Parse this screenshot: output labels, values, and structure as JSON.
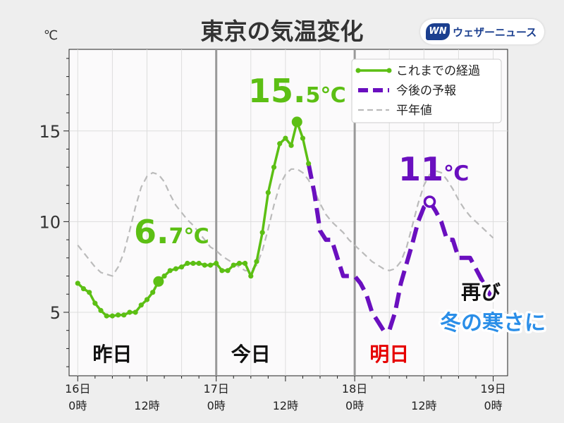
{
  "title": "東京の気温変化",
  "unit_label": "℃",
  "brand": {
    "mark": "WN",
    "name": "ウェザーニュース",
    "color": "#1b3f8f"
  },
  "legend": {
    "observed": "これまでの経過",
    "forecast": "今後の予報",
    "normal": "平年値"
  },
  "colors": {
    "observed": "#5cbf14",
    "forecast": "#6a0fbf",
    "normal": "#bbbbbb",
    "today_accent": "#e60000",
    "callout_blue": "#2a8ee8"
  },
  "day_labels": [
    {
      "text": "昨日",
      "x": 6,
      "color": "#111111"
    },
    {
      "text": "今日",
      "x": 30,
      "color": "#111111"
    },
    {
      "text": "明日",
      "x": 54,
      "color": "#e60000"
    }
  ],
  "annotations": [
    {
      "big": "6.",
      "small": "7℃",
      "x": 9,
      "y": 6.7,
      "color": "#5cbf14"
    },
    {
      "big": "15.",
      "small": "5℃",
      "x": 39,
      "y": 15.5,
      "color": "#5cbf14"
    },
    {
      "big": "11",
      "small": "℃",
      "x": 62,
      "y": 11.1,
      "color": "#6a0fbf"
    }
  ],
  "callout": {
    "line1": "再び",
    "line2": "冬の寒さに"
  },
  "chart_data": {
    "type": "line",
    "title": "東京の気温変化",
    "ylabel": "℃",
    "xlim": [
      -1.5,
      74.5
    ],
    "ylim": [
      1.5,
      19.5
    ],
    "yticks": [
      5,
      10,
      15
    ],
    "xticks": [
      {
        "x": 0,
        "top": "16日",
        "bottom": "0時"
      },
      {
        "x": 12,
        "top": "",
        "bottom": "12時"
      },
      {
        "x": 24,
        "top": "17日",
        "bottom": "0時"
      },
      {
        "x": 36,
        "top": "",
        "bottom": "12時"
      },
      {
        "x": 48,
        "top": "18日",
        "bottom": "0時"
      },
      {
        "x": 60,
        "top": "",
        "bottom": "12時"
      },
      {
        "x": 72,
        "top": "19日",
        "bottom": "0時"
      }
    ],
    "day_separators": [
      24,
      48
    ],
    "grid": true,
    "legend_position": "top-right",
    "series": [
      {
        "key": "observed",
        "name": "これまでの経過",
        "style": "solid-markers",
        "points": [
          [
            0,
            6.6
          ],
          [
            1,
            6.3
          ],
          [
            2,
            6.1
          ],
          [
            3,
            5.5
          ],
          [
            4,
            5.1
          ],
          [
            5,
            4.8
          ],
          [
            6,
            4.8
          ],
          [
            7,
            4.85
          ],
          [
            8,
            4.85
          ],
          [
            9,
            5.0
          ],
          [
            10,
            5.0
          ],
          [
            11,
            5.4
          ],
          [
            12,
            5.7
          ],
          [
            13,
            6.1
          ],
          [
            14,
            6.7
          ],
          [
            15,
            7.0
          ],
          [
            16,
            7.3
          ],
          [
            17,
            7.4
          ],
          [
            18,
            7.5
          ],
          [
            19,
            7.7
          ],
          [
            20,
            7.7
          ],
          [
            21,
            7.7
          ],
          [
            22,
            7.6
          ],
          [
            23,
            7.6
          ],
          [
            24,
            7.7
          ],
          [
            25,
            7.3
          ],
          [
            26,
            7.3
          ],
          [
            27,
            7.6
          ],
          [
            28,
            7.7
          ],
          [
            29,
            7.7
          ],
          [
            30,
            7.0
          ],
          [
            31,
            7.8
          ],
          [
            32,
            9.4
          ],
          [
            33,
            11.6
          ],
          [
            34,
            13.0
          ],
          [
            35,
            14.3
          ],
          [
            36,
            14.6
          ],
          [
            37,
            14.2
          ],
          [
            38,
            15.5
          ],
          [
            39,
            14.6
          ],
          [
            40,
            13.2
          ]
        ]
      },
      {
        "key": "forecast",
        "name": "今後の予報",
        "style": "dashed",
        "points": [
          [
            40,
            13.2
          ],
          [
            41,
            11.6
          ],
          [
            42,
            9.5
          ],
          [
            43,
            9.0
          ],
          [
            44,
            9.0
          ],
          [
            45,
            8.0
          ],
          [
            46,
            7.0
          ],
          [
            47,
            7.0
          ],
          [
            48,
            7.0
          ],
          [
            49,
            6.6
          ],
          [
            50,
            6.0
          ],
          [
            51,
            5.0
          ],
          [
            52,
            4.5
          ],
          [
            53,
            4.0
          ],
          [
            54,
            4.0
          ],
          [
            55,
            5.0
          ],
          [
            56,
            6.6
          ],
          [
            57,
            7.7
          ],
          [
            58,
            8.8
          ],
          [
            59,
            10.0
          ],
          [
            60,
            10.8
          ],
          [
            61,
            11.1
          ],
          [
            62,
            10.6
          ],
          [
            63,
            10.0
          ],
          [
            64,
            9.0
          ],
          [
            65,
            9.0
          ],
          [
            66,
            8.0
          ],
          [
            67,
            8.0
          ],
          [
            68,
            8.0
          ],
          [
            69,
            7.4
          ],
          [
            70,
            6.8
          ],
          [
            71,
            6.2
          ],
          [
            72,
            5.7
          ]
        ]
      },
      {
        "key": "normal",
        "name": "平年値",
        "style": "dashed-thin",
        "points": [
          [
            0,
            8.7
          ],
          [
            1,
            8.3
          ],
          [
            2,
            7.9
          ],
          [
            3,
            7.5
          ],
          [
            4,
            7.2
          ],
          [
            5,
            7.1
          ],
          [
            6,
            7.0
          ],
          [
            7,
            7.5
          ],
          [
            8,
            8.3
          ],
          [
            9,
            9.5
          ],
          [
            10,
            10.8
          ],
          [
            11,
            11.9
          ],
          [
            12,
            12.5
          ],
          [
            13,
            12.7
          ],
          [
            14,
            12.6
          ],
          [
            15,
            12.2
          ],
          [
            16,
            11.5
          ],
          [
            17,
            10.9
          ],
          [
            18,
            10.5
          ],
          [
            19,
            10.1
          ],
          [
            20,
            9.8
          ],
          [
            21,
            9.4
          ],
          [
            22,
            9.0
          ],
          [
            23,
            8.6
          ],
          [
            24,
            8.4
          ],
          [
            25,
            8.1
          ],
          [
            26,
            7.9
          ],
          [
            27,
            7.7
          ],
          [
            28,
            7.5
          ],
          [
            29,
            7.3
          ],
          [
            30,
            7.3
          ],
          [
            31,
            7.6
          ],
          [
            32,
            8.4
          ],
          [
            33,
            9.6
          ],
          [
            34,
            10.9
          ],
          [
            35,
            12.0
          ],
          [
            36,
            12.6
          ],
          [
            37,
            12.9
          ],
          [
            38,
            12.9
          ],
          [
            39,
            12.7
          ],
          [
            40,
            12.3
          ],
          [
            41,
            11.7
          ],
          [
            42,
            11.0
          ],
          [
            43,
            10.4
          ],
          [
            44,
            10.0
          ],
          [
            45,
            9.7
          ],
          [
            46,
            9.4
          ],
          [
            47,
            9.0
          ],
          [
            48,
            8.7
          ],
          [
            49,
            8.4
          ],
          [
            50,
            8.1
          ],
          [
            51,
            7.8
          ],
          [
            52,
            7.6
          ],
          [
            53,
            7.4
          ],
          [
            54,
            7.3
          ],
          [
            55,
            7.4
          ],
          [
            56,
            7.8
          ],
          [
            57,
            8.6
          ],
          [
            58,
            9.8
          ],
          [
            59,
            11.0
          ],
          [
            60,
            12.0
          ],
          [
            61,
            12.6
          ],
          [
            62,
            12.8
          ],
          [
            63,
            12.7
          ],
          [
            64,
            12.3
          ],
          [
            65,
            11.8
          ],
          [
            66,
            11.2
          ],
          [
            67,
            10.7
          ],
          [
            68,
            10.3
          ],
          [
            69,
            10.0
          ],
          [
            70,
            9.7
          ],
          [
            71,
            9.4
          ],
          [
            72,
            9.1
          ]
        ]
      }
    ],
    "highlight_points": [
      {
        "series": "observed",
        "x": 14,
        "y": 6.7,
        "marker": "filled"
      },
      {
        "series": "observed",
        "x": 38,
        "y": 15.5,
        "marker": "filled"
      },
      {
        "series": "forecast",
        "x": 61,
        "y": 11.1,
        "marker": "hollow"
      }
    ]
  }
}
